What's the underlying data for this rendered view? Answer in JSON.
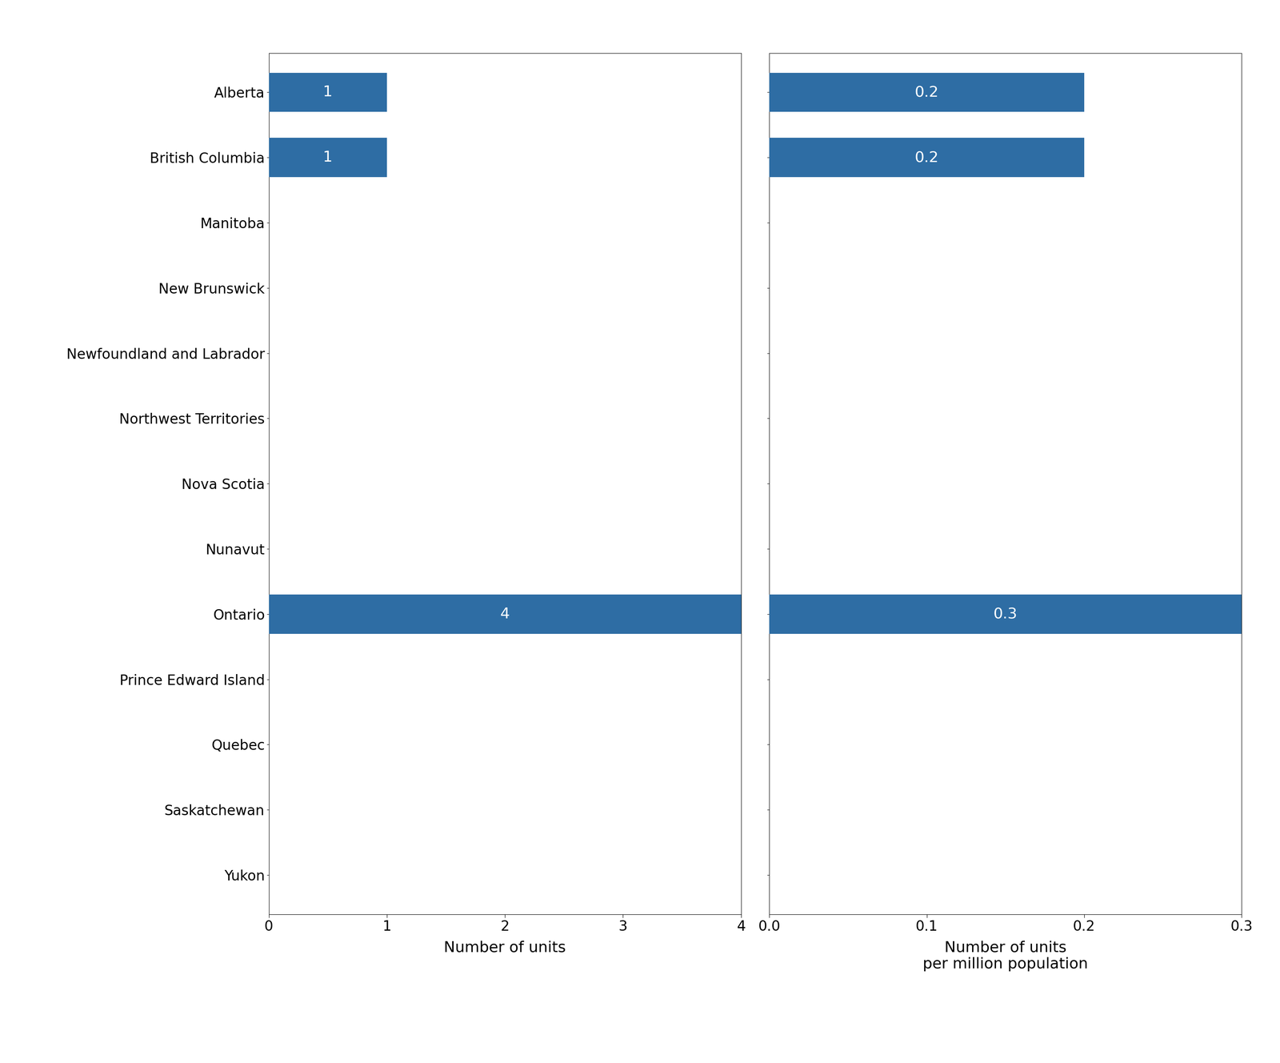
{
  "chart_data": [
    {
      "type": "bar",
      "orientation": "horizontal",
      "categories": [
        "Alberta",
        "British Columbia",
        "Manitoba",
        "New Brunswick",
        "Newfoundland and Labrador",
        "Northwest Territories",
        "Nova Scotia",
        "Nunavut",
        "Ontario",
        "Prince Edward Island",
        "Quebec",
        "Saskatchewan",
        "Yukon"
      ],
      "values": [
        1,
        1,
        0,
        0,
        0,
        0,
        0,
        0,
        4,
        0,
        0,
        0,
        0
      ],
      "color": "#2E6DA4",
      "x_label": "Number of units",
      "xlim": [
        0,
        4
      ],
      "xticks": [
        0,
        1,
        2,
        3,
        4
      ],
      "data_labels": true,
      "grid": false
    },
    {
      "type": "bar",
      "orientation": "horizontal",
      "categories": [
        "Alberta",
        "British Columbia",
        "Manitoba",
        "New Brunswick",
        "Newfoundland and Labrador",
        "Northwest Territories",
        "Nova Scotia",
        "Nunavut",
        "Ontario",
        "Prince Edward Island",
        "Quebec",
        "Saskatchewan",
        "Yukon"
      ],
      "values": [
        0.2,
        0.2,
        0,
        0,
        0,
        0,
        0,
        0,
        0.3,
        0,
        0,
        0,
        0
      ],
      "color": "#2E6DA4",
      "x_label": "Number of units\nper million population",
      "xlim": [
        0.0,
        0.3
      ],
      "xticks": [
        0.0,
        0.1,
        0.2,
        0.3
      ],
      "data_labels": true,
      "grid": false,
      "tick_labels": "x"
    }
  ]
}
